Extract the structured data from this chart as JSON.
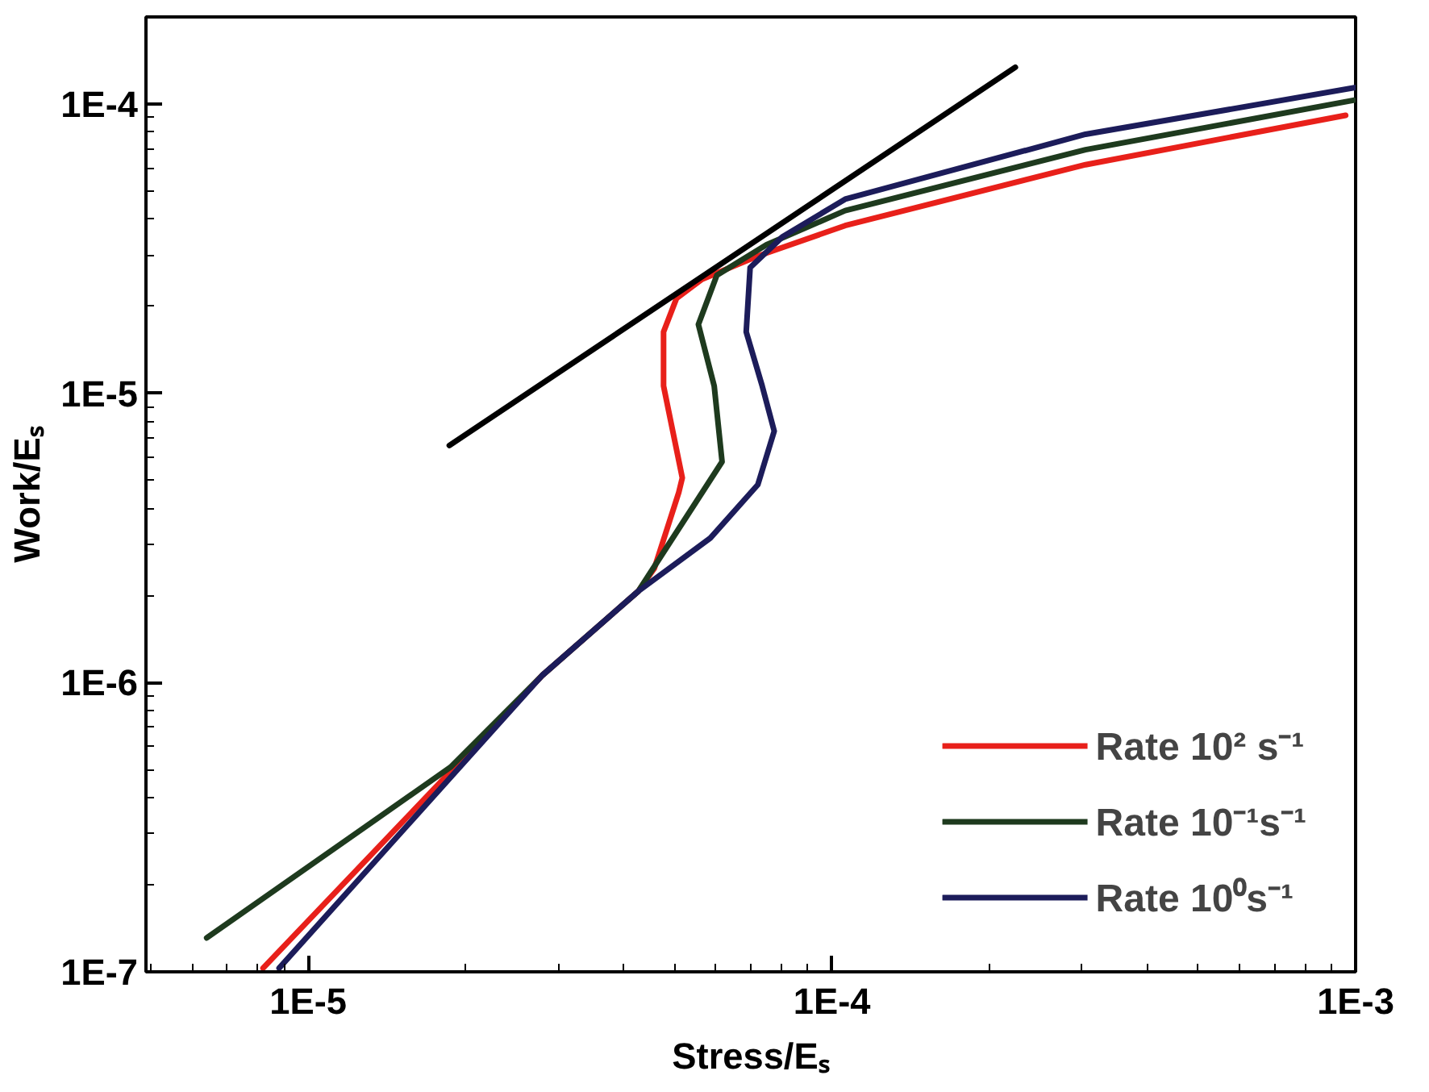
{
  "chart_data": {
    "type": "line",
    "xlabel": "Stress/Eₛ",
    "ylabel": "Work/Eₛ",
    "log": "xy",
    "grid": false,
    "legend": "bottom right",
    "marker": "none",
    "line_style": "solid",
    "xlim": [
      4.9e-06,
      0.001
    ],
    "ylim": [
      1e-07,
      0.0002
    ],
    "xticks": [
      {
        "value": 1e-05,
        "label": "1E-5"
      },
      {
        "value": 0.0001,
        "label": "1E-4"
      },
      {
        "value": 0.001,
        "label": "1E-3"
      }
    ],
    "yticks": [
      {
        "value": 1e-07,
        "label": "1E-7"
      },
      {
        "value": 1e-06,
        "label": "1E-6"
      },
      {
        "value": 1e-05,
        "label": "1E-5"
      },
      {
        "value": 0.0001,
        "label": "1E-4"
      }
    ],
    "series": [
      {
        "name": "Rate 10² s⁻¹",
        "color": "#e8201a",
        "x": [
          8.2e-06,
          2.8e-05,
          4.27e-05,
          4.58e-05,
          5.1e-05,
          5.18e-05,
          4.77e-05,
          4.77e-05,
          5.05e-05,
          5.65e-05,
          7.22e-05,
          0.000106,
          0.000305,
          0.000957
        ],
        "values": [
          1.03e-07,
          1.06e-06,
          2.07e-06,
          2.48e-06,
          4.54e-06,
          5.1e-06,
          1.06e-05,
          1.63e-05,
          2.13e-05,
          2.48e-05,
          2.98e-05,
          3.8e-05,
          6.17e-05,
          9.14e-05
        ]
      },
      {
        "name": "Rate 10⁻¹s⁻¹",
        "color": "#1e3a1e",
        "x": [
          6.4e-06,
          1.87e-05,
          2.8e-05,
          4.27e-05,
          6.17e-05,
          5.96e-05,
          5.56e-05,
          6.03e-05,
          7.5e-05,
          0.000106,
          0.000305,
          0.00099
        ],
        "values": [
          1.31e-07,
          5.1e-07,
          1.06e-06,
          2.07e-06,
          5.8e-06,
          1.06e-05,
          1.73e-05,
          2.56e-05,
          3.26e-05,
          4.28e-05,
          6.95e-05,
          0.000103
        ]
      },
      {
        "name": "Rate 10⁰s⁻¹",
        "color": "#1c1c5a",
        "x": [
          8.8e-06,
          2.8e-05,
          4.27e-05,
          5.86e-05,
          7.22e-05,
          7.76e-05,
          7.36e-05,
          6.86e-05,
          6.98e-05,
          8.04e-05,
          0.000106,
          0.000305,
          0.001
        ],
        "values": [
          1.03e-07,
          1.06e-06,
          2.07e-06,
          3.16e-06,
          4.83e-06,
          7.4e-06,
          1.06e-05,
          1.63e-05,
          2.72e-05,
          3.47e-05,
          4.69e-05,
          7.86e-05,
          0.000114
        ]
      },
      {
        "color": "#000000",
        "x": [
          1.86e-05,
          0.000224
        ],
        "values": [
          6.6e-06,
          0.000134
        ]
      }
    ]
  }
}
